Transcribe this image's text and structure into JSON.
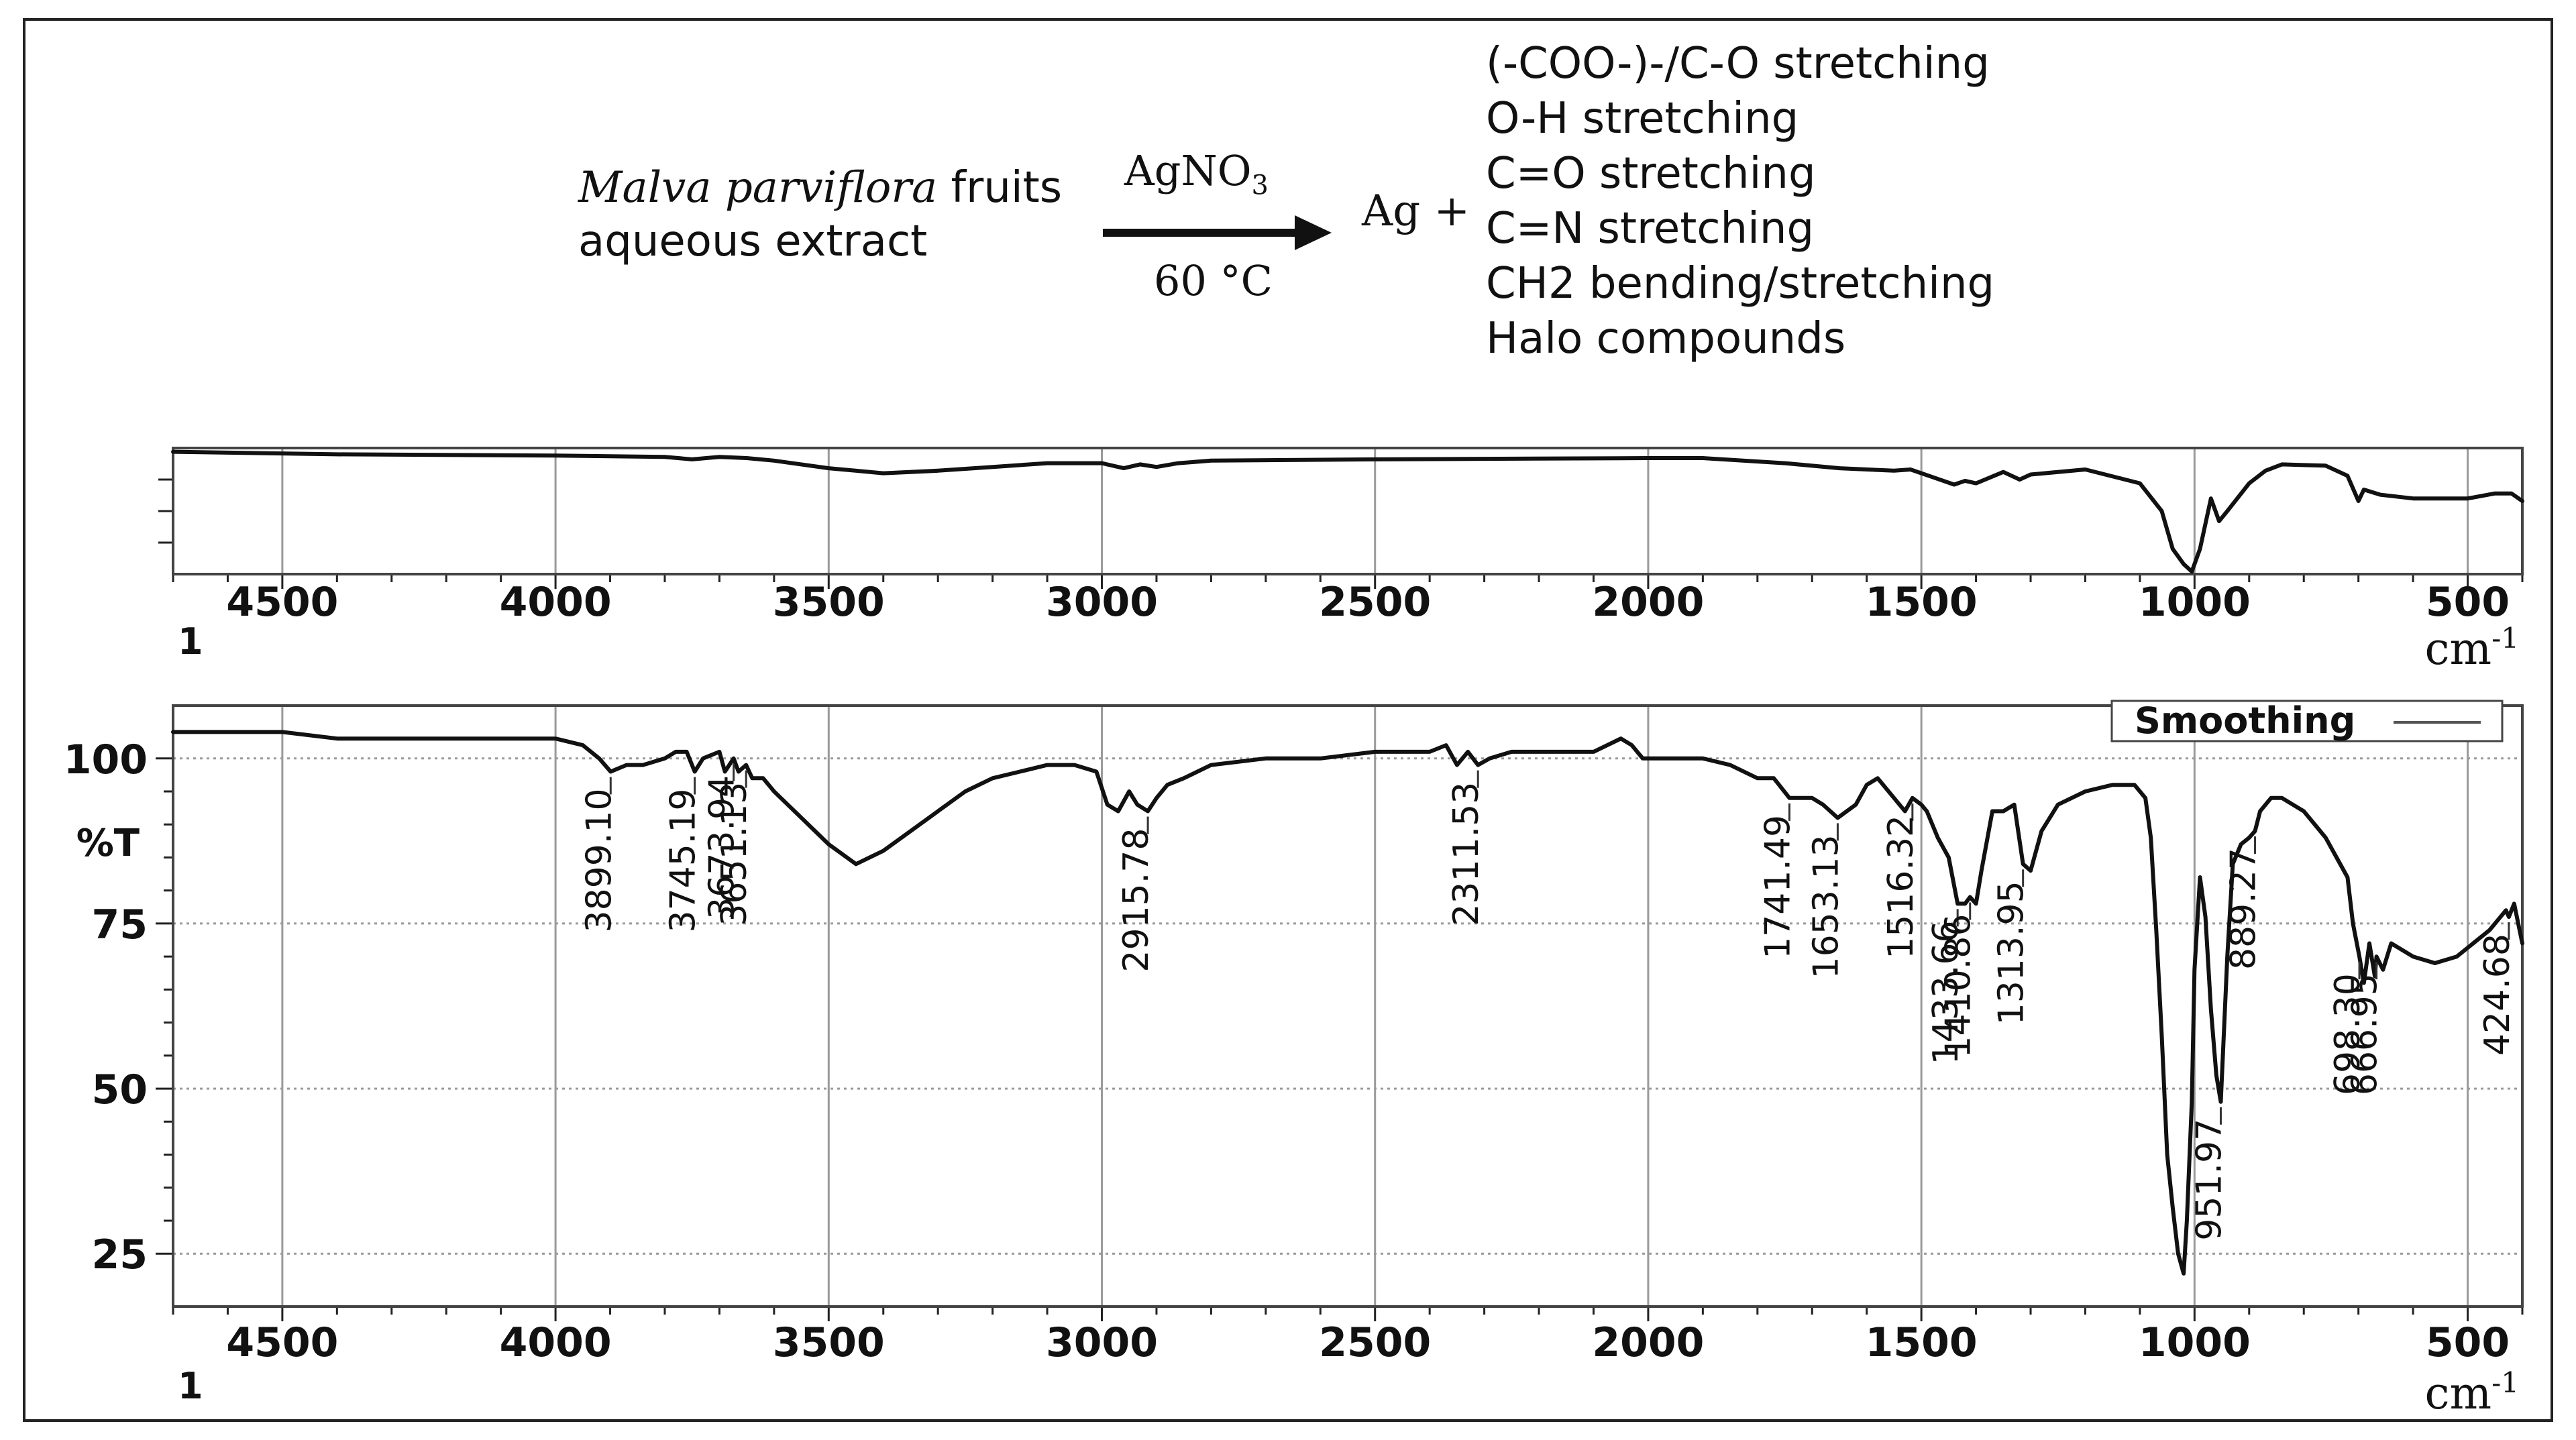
{
  "reaction": {
    "plant_species": "Malva parviflora",
    "plant_suffix": " fruits",
    "plant_line2": "aqueous extract",
    "reagent": "AgNO",
    "reagent_subscript": "3",
    "temperature": "60 °C",
    "product": "Ag +",
    "functional_groups": [
      "(-COO-)-/C-O stretching",
      "O-H stretching",
      "C=O stretching",
      "C=N stretching",
      "CH2 bending/stretching",
      "Halo compounds"
    ]
  },
  "colors": {
    "line": "#111111",
    "grid": "#9a9a9a",
    "frame": "#222222",
    "background": "#ffffff"
  },
  "chart_data": [
    {
      "type": "line",
      "xlabel": "cm-1",
      "xlim": [
        4700,
        400
      ],
      "ylim": [
        0,
        100
      ],
      "x_ticks": [
        4500,
        4000,
        3500,
        3000,
        2500,
        2000,
        1500,
        1000,
        500
      ],
      "corner_label": "1",
      "grid": true,
      "y_tick_labels_shown": false,
      "series": [
        {
          "x": [
            4700,
            4400,
            4000,
            3800,
            3750,
            3700,
            3650,
            3600,
            3500,
            3400,
            3300,
            3200,
            3100,
            3000,
            2960,
            2930,
            2900,
            2860,
            2800,
            2500,
            2000,
            1900,
            1750,
            1650,
            1550,
            1520,
            1480,
            1440,
            1420,
            1400,
            1350,
            1320,
            1300,
            1200,
            1100,
            1060,
            1040,
            1020,
            1005,
            990,
            970,
            955,
            940,
            900,
            870,
            840,
            760,
            720,
            700,
            690,
            660,
            600,
            500,
            450,
            420,
            400
          ],
          "y": [
            97,
            95,
            94,
            93,
            91,
            93,
            92,
            90,
            84,
            80,
            82,
            85,
            88,
            88,
            84,
            87,
            85,
            88,
            90,
            91,
            92,
            92,
            88,
            84,
            82,
            83,
            77,
            71,
            74,
            72,
            81,
            75,
            79,
            83,
            72,
            50,
            20,
            8,
            2,
            20,
            60,
            42,
            50,
            72,
            82,
            87,
            86,
            78,
            58,
            67,
            63,
            60,
            60,
            64,
            64,
            58
          ]
        }
      ]
    },
    {
      "type": "line",
      "xlabel": "cm-1",
      "ylabel": "%T",
      "xlim": [
        4700,
        400
      ],
      "ylim": [
        17,
        108
      ],
      "x_ticks": [
        4500,
        4000,
        3500,
        3000,
        2500,
        2000,
        1500,
        1000,
        500
      ],
      "y_ticks": [
        100,
        75,
        50,
        25
      ],
      "corner_label": "1",
      "grid": true,
      "legend": {
        "label": "Smoothing",
        "position": "top-right"
      },
      "series": [
        {
          "name": "Smoothing",
          "x": [
            4700,
            4500,
            4400,
            4300,
            4100,
            4000,
            3950,
            3920,
            3899.1,
            3870,
            3840,
            3800,
            3780,
            3760,
            3745.19,
            3730,
            3700,
            3690,
            3673.94,
            3665,
            3651.13,
            3640,
            3620,
            3600,
            3550,
            3500,
            3450,
            3400,
            3350,
            3300,
            3250,
            3200,
            3150,
            3100,
            3050,
            3010,
            2990,
            2970,
            2950,
            2935,
            2915.78,
            2900,
            2880,
            2850,
            2800,
            2700,
            2600,
            2500,
            2400,
            2370,
            2350,
            2330,
            2311.53,
            2290,
            2250,
            2200,
            2100,
            2050,
            2030,
            2010,
            1990,
            1950,
            1900,
            1850,
            1800,
            1770,
            1741.49,
            1720,
            1700,
            1680,
            1653.13,
            1620,
            1600,
            1580,
            1560,
            1530,
            1516.32,
            1500,
            1490,
            1470,
            1450,
            1433.66,
            1420,
            1410.86,
            1400,
            1390,
            1370,
            1350,
            1330,
            1313.95,
            1300,
            1280,
            1250,
            1200,
            1150,
            1110,
            1090,
            1080,
            1070,
            1060,
            1050,
            1040,
            1030,
            1020,
            1014,
            1005,
            1000,
            990,
            980,
            970,
            960,
            951.97,
            940,
            930,
            915,
            900,
            889.27,
            880,
            860,
            840,
            800,
            780,
            760,
            740,
            720,
            710,
            698.3,
            690,
            680,
            670,
            666.95,
            655,
            640,
            600,
            560,
            520,
            490,
            460,
            440,
            430,
            424.68,
            415,
            405,
            400
          ],
          "y": [
            104,
            104,
            103,
            103,
            103,
            103,
            102,
            100,
            98,
            99,
            99,
            100,
            101,
            101,
            98,
            100,
            101,
            98,
            100,
            98,
            99,
            97,
            97,
            95,
            91,
            87,
            84,
            86,
            89,
            92,
            95,
            97,
            98,
            99,
            99,
            98,
            93,
            92,
            95,
            93,
            92,
            94,
            96,
            97,
            99,
            100,
            100,
            101,
            101,
            102,
            99,
            101,
            99,
            100,
            101,
            101,
            101,
            103,
            102,
            100,
            100,
            100,
            100,
            99,
            97,
            97,
            94,
            94,
            94,
            93,
            91,
            93,
            96,
            97,
            95,
            92,
            94,
            93,
            92,
            88,
            85,
            78,
            78,
            79,
            78,
            83,
            92,
            92,
            93,
            84,
            83,
            89,
            93,
            95,
            96,
            96,
            94,
            88,
            74,
            58,
            40,
            32,
            25,
            22,
            30,
            48,
            68,
            82,
            76,
            62,
            52,
            48,
            70,
            84,
            87,
            88,
            89,
            92,
            94,
            94,
            92,
            90,
            88,
            85,
            82,
            75,
            70,
            66,
            72,
            67,
            70,
            68,
            72,
            70,
            69,
            70,
            72,
            74,
            76,
            77,
            76,
            78,
            74,
            72
          ],
          "peak_labels": [
            "3899.10",
            "3745.19",
            "3673.94",
            "3651.13",
            "2915.78",
            "2311.53",
            "1741.49",
            "1653.13",
            "1516.32",
            "1433.66",
            "1410.86",
            "1313.95",
            "951.97",
            "889.27",
            "698.30",
            "666.95",
            "424.68"
          ]
        }
      ]
    }
  ]
}
